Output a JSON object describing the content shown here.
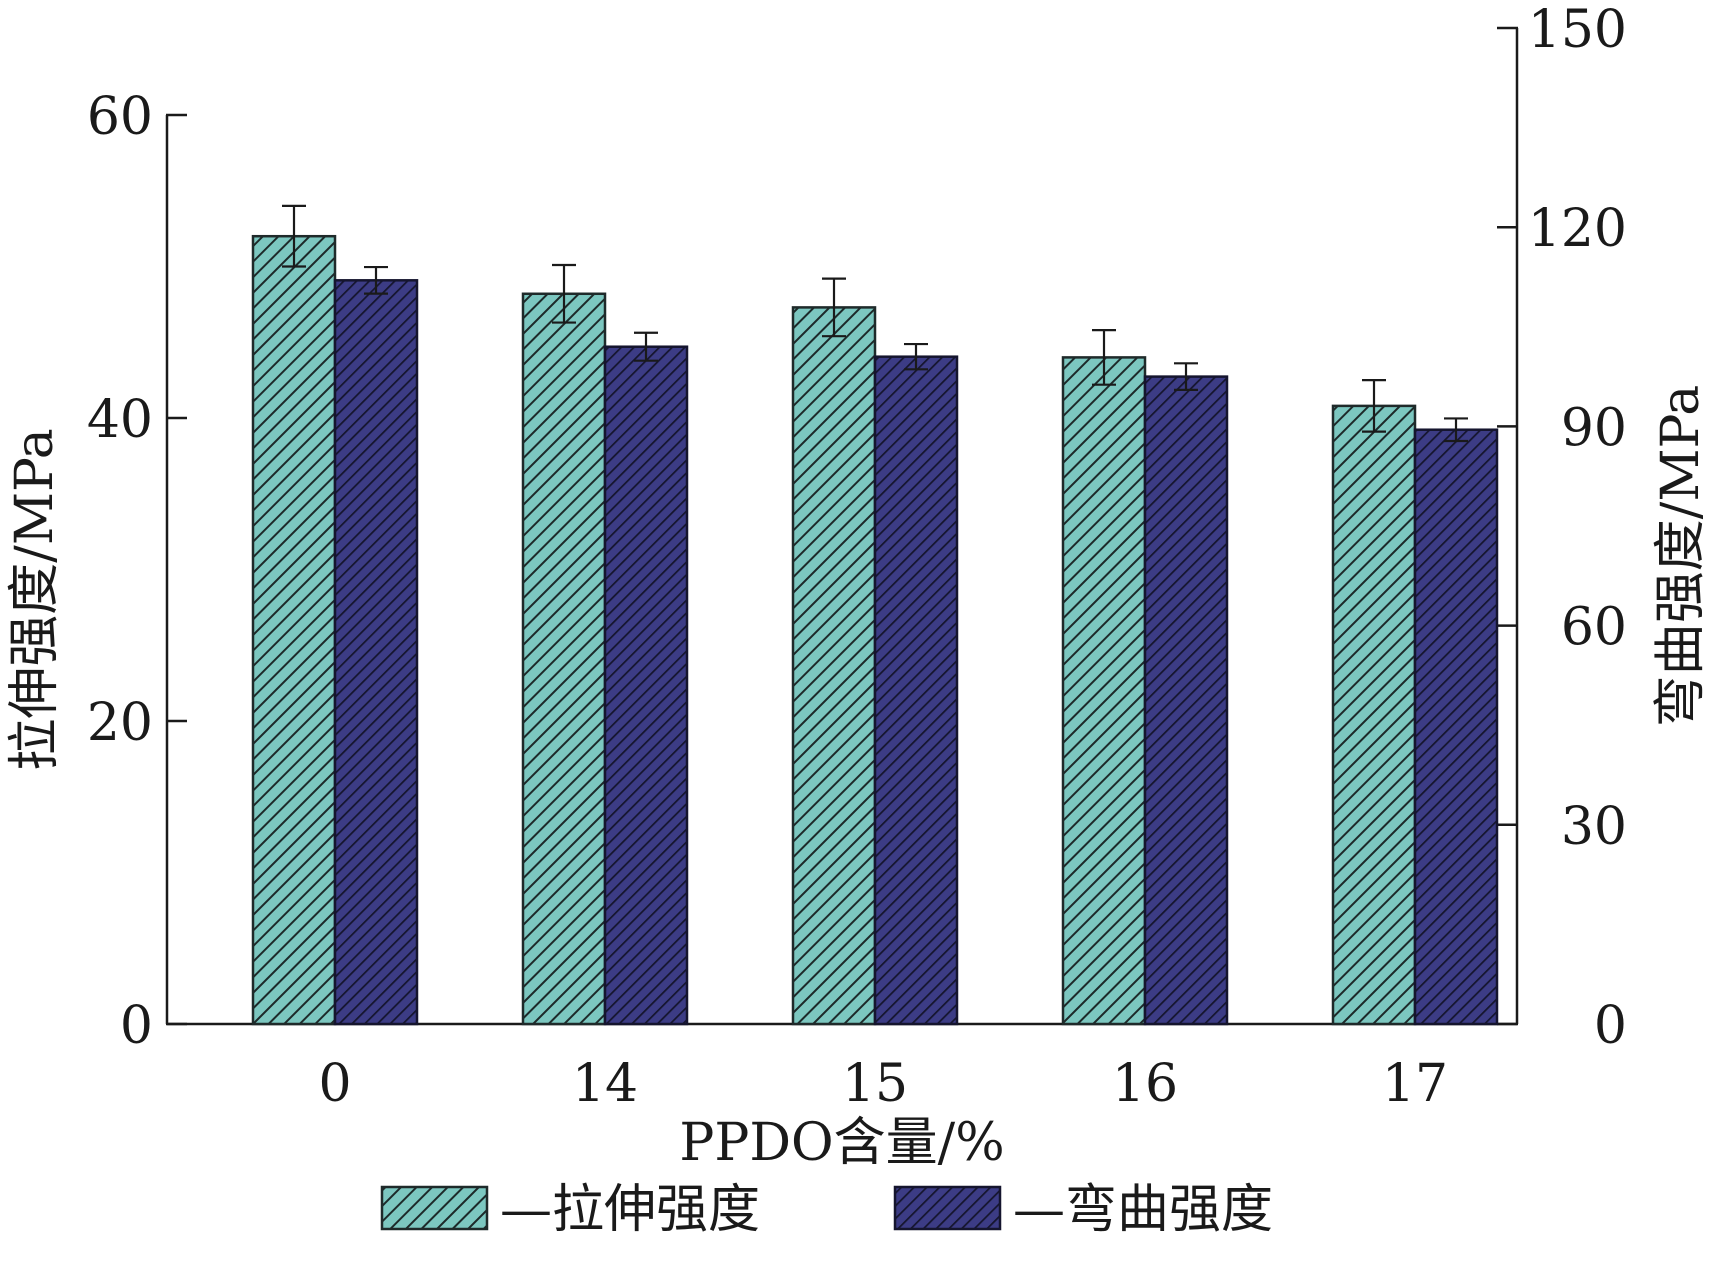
{
  "chart_data": {
    "type": "bar",
    "categories": [
      "0",
      "14",
      "15",
      "16",
      "17"
    ],
    "xlabel": "PPDO含量/%",
    "ylabel_left": "拉伸强度/MPa",
    "ylabel_right": "弯曲强度/MPa",
    "ylim_left": [
      0,
      60
    ],
    "ylim_right": [
      0,
      150
    ],
    "yticks_left": [
      0,
      20,
      40,
      60
    ],
    "yticks_right": [
      0,
      30,
      60,
      90,
      120,
      150
    ],
    "grid": false,
    "legend_position": "bottom",
    "series": [
      {
        "name": "—拉伸强度",
        "axis": "left",
        "color": "#7cc7c0",
        "values": [
          52.0,
          48.2,
          47.3,
          44.0,
          40.8
        ],
        "errors": [
          2.0,
          1.9,
          1.9,
          1.8,
          1.7
        ]
      },
      {
        "name": "—弯曲强度",
        "axis": "right",
        "color": "#3c3c85",
        "values": [
          112.0,
          102.0,
          100.5,
          97.5,
          89.5
        ],
        "errors": [
          2.0,
          2.1,
          1.9,
          2.0,
          1.7
        ]
      }
    ]
  }
}
